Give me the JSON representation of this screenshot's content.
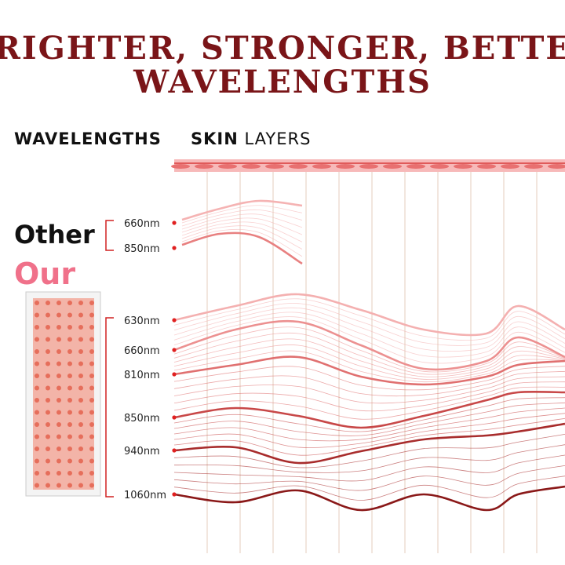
{
  "title": [
    "BRIGHTER, STRONGER, BETTER",
    "WAVELENGTHS"
  ],
  "header": {
    "wavelengths": "WAVELENGTHS",
    "skin": "SKIN",
    "layers": "LAYERS"
  },
  "other": {
    "label": "Other",
    "wavelengths": [
      "660nm",
      "850nm"
    ]
  },
  "our": {
    "label": "Our",
    "wavelengths": [
      "630nm",
      "660nm",
      "810nm",
      "850nm",
      "940nm",
      "1060nm"
    ]
  }
}
